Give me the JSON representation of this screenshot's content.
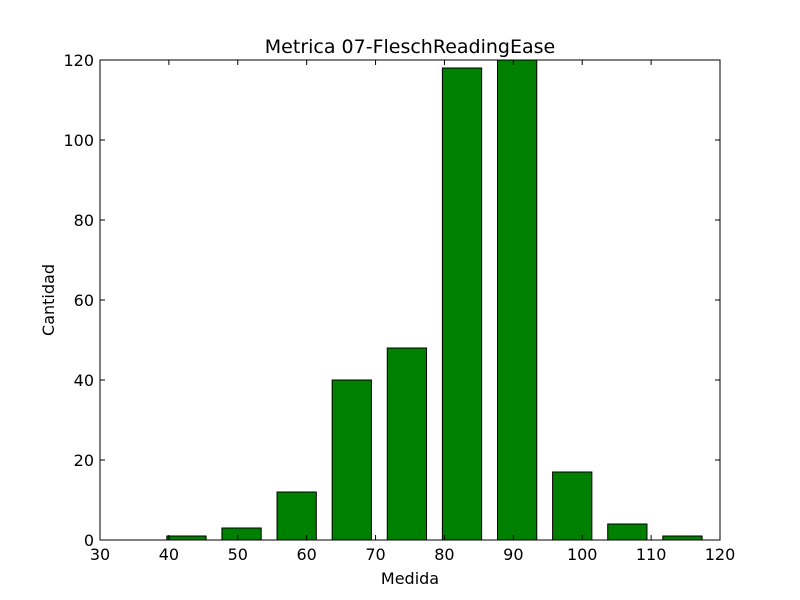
{
  "chart_data": {
    "type": "bar",
    "title": "Metrica 07-FleschReadingEase",
    "xlabel": "Medida",
    "ylabel": "Cantidad",
    "xlim": [
      30,
      120
    ],
    "ylim": [
      0,
      120
    ],
    "xticks": [
      30,
      40,
      50,
      60,
      70,
      80,
      90,
      100,
      110,
      120
    ],
    "yticks": [
      0,
      20,
      40,
      60,
      80,
      100,
      120
    ],
    "bar_color": "#008000",
    "bar_edge_color": "#000000",
    "grid": false,
    "bars": [
      {
        "x_start": 39.7,
        "x_end": 45.4,
        "value": 1
      },
      {
        "x_start": 47.7,
        "x_end": 53.4,
        "value": 3
      },
      {
        "x_start": 55.7,
        "x_end": 61.4,
        "value": 12
      },
      {
        "x_start": 63.7,
        "x_end": 69.4,
        "value": 40
      },
      {
        "x_start": 71.7,
        "x_end": 77.4,
        "value": 48
      },
      {
        "x_start": 79.7,
        "x_end": 85.4,
        "value": 118
      },
      {
        "x_start": 87.7,
        "x_end": 93.4,
        "value": 120
      },
      {
        "x_start": 95.7,
        "x_end": 101.4,
        "value": 17
      },
      {
        "x_start": 103.7,
        "x_end": 109.4,
        "value": 4
      },
      {
        "x_start": 111.7,
        "x_end": 117.4,
        "value": 1
      }
    ]
  }
}
